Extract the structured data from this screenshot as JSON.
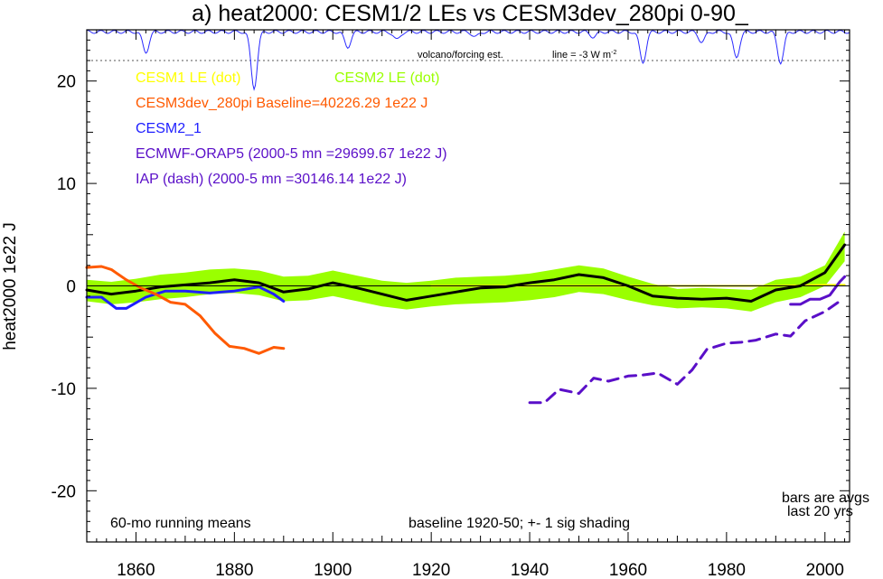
{
  "chart_data": {
    "type": "line",
    "title": "a) heat2000: CESM1/2 LEs vs CESM3dev_280pi 0-90_",
    "xlabel": "",
    "ylabel": "heat2000 1e22 J",
    "xlim": [
      1850,
      2005
    ],
    "ylim": [
      -25,
      25
    ],
    "x_ticks": [
      1860,
      1880,
      1900,
      1920,
      1940,
      1960,
      1980,
      2000
    ],
    "y_ticks": [
      -20,
      -10,
      0,
      10,
      20
    ],
    "grid": false,
    "colors": {
      "cesm1": "#ffff00",
      "cesm2_le": "#9aff00",
      "cesm3dev": "#ff5a00",
      "cesm2_1": "#1f1fff",
      "orap5": "#5a0fc8",
      "iap": "#5a0fc8",
      "volcano": "#2a2aff",
      "ensemble_mean": "#000000"
    },
    "legend": [
      {
        "key": "cesm1",
        "text": "CESM1 LE (dot)"
      },
      {
        "key": "cesm2_le",
        "text": "CESM2 LE (dot)"
      },
      {
        "key": "cesm3dev",
        "text": "CESM3dev_280pi Baseline=40226.29 1e22 J"
      },
      {
        "key": "cesm2_1",
        "text": "CESM2_1"
      },
      {
        "key": "orap5",
        "text": "ECMWF-ORAP5 (2000-5 mn =29699.67 1e22 J)"
      },
      {
        "key": "iap",
        "text": "IAP (dash) (2000-5 mn =30146.14 1e22 J)"
      }
    ],
    "annotations": {
      "volcano_label": "volcano/forcing est.",
      "line_label": "line = -3 W m",
      "line_sup": "-2",
      "running_means": "60-mo running means",
      "baseline": "baseline 1920-50; +- 1 sig shading",
      "bars_line1": "bars are avgs",
      "bars_line2": "last 20 yrs"
    },
    "volcano_line_y": 22,
    "volcano_dips": [
      {
        "year": 1862,
        "depth": 2.0
      },
      {
        "year": 1884,
        "depth": 5.5
      },
      {
        "year": 1903,
        "depth": 1.5
      },
      {
        "year": 1913,
        "depth": 0.8
      },
      {
        "year": 1929,
        "depth": 0.5
      },
      {
        "year": 1953,
        "depth": 0.5
      },
      {
        "year": 1963,
        "depth": 3.0
      },
      {
        "year": 1975,
        "depth": 1.0
      },
      {
        "year": 1982,
        "depth": 2.5
      },
      {
        "year": 1991,
        "depth": 3.0
      }
    ],
    "series": [
      {
        "key": "cesm2_le",
        "style": "band",
        "x": [
          1850,
          1855,
          1860,
          1865,
          1870,
          1875,
          1880,
          1885,
          1890,
          1895,
          1900,
          1905,
          1910,
          1915,
          1920,
          1925,
          1930,
          1935,
          1940,
          1945,
          1950,
          1955,
          1960,
          1965,
          1970,
          1975,
          1980,
          1985,
          1990,
          1995,
          2000,
          2004
        ],
        "upper": [
          0.6,
          0.4,
          0.7,
          1.1,
          1.3,
          1.6,
          1.7,
          1.5,
          0.9,
          1.0,
          1.5,
          1.0,
          0.5,
          0.3,
          0.5,
          0.8,
          0.9,
          1.0,
          1.2,
          1.6,
          2.0,
          1.7,
          0.9,
          0.2,
          -0.3,
          -0.2,
          -0.3,
          -0.4,
          0.6,
          0.9,
          2.0,
          5.3
        ],
        "lower": [
          -1.5,
          -1.8,
          -1.6,
          -1.3,
          -1.1,
          -0.8,
          -0.7,
          -0.9,
          -1.5,
          -1.4,
          -1.0,
          -1.5,
          -2.0,
          -2.3,
          -2.0,
          -1.8,
          -1.7,
          -1.6,
          -1.4,
          -1.1,
          -0.6,
          -0.8,
          -1.4,
          -1.9,
          -2.2,
          -2.1,
          -2.2,
          -2.5,
          -1.6,
          -1.1,
          0.0,
          2.4
        ]
      },
      {
        "key": "cesm1",
        "style": "line",
        "x": [
          1920,
          1930,
          1940,
          1950,
          1960,
          1970,
          1980,
          1990,
          2000,
          2004
        ],
        "y": [
          0.0,
          0.0,
          0.0,
          0.0,
          0.0,
          0.0,
          0.0,
          0.0,
          0.1,
          0.1
        ]
      },
      {
        "key": "ensemble_mean",
        "style": "line",
        "x": [
          1850,
          1855,
          1860,
          1865,
          1870,
          1875,
          1880,
          1885,
          1890,
          1895,
          1900,
          1905,
          1910,
          1915,
          1920,
          1925,
          1930,
          1935,
          1940,
          1945,
          1950,
          1955,
          1960,
          1965,
          1970,
          1975,
          1980,
          1985,
          1990,
          1995,
          2000,
          2004
        ],
        "y": [
          -0.4,
          -0.8,
          -0.5,
          -0.1,
          0.1,
          0.3,
          0.6,
          0.3,
          -0.6,
          -0.3,
          0.3,
          -0.2,
          -0.8,
          -1.4,
          -1.0,
          -0.6,
          -0.2,
          -0.1,
          0.3,
          0.6,
          1.1,
          0.8,
          0.0,
          -1.0,
          -1.2,
          -1.3,
          -1.2,
          -1.5,
          -0.4,
          0.0,
          1.3,
          4.0
        ]
      },
      {
        "key": "cesm2_1",
        "style": "line",
        "x": [
          1850,
          1853,
          1856,
          1858,
          1862,
          1866,
          1870,
          1875,
          1880,
          1885,
          1888,
          1890
        ],
        "y": [
          -1.1,
          -1.1,
          -2.2,
          -2.2,
          -1.1,
          -0.5,
          -0.5,
          -0.7,
          -0.5,
          -0.1,
          -0.8,
          -1.5
        ]
      },
      {
        "key": "cesm3dev",
        "style": "line",
        "x": [
          1850,
          1853,
          1855,
          1858,
          1861,
          1864,
          1867,
          1870,
          1873,
          1876,
          1879,
          1882,
          1885,
          1888,
          1890
        ],
        "y": [
          1.8,
          1.9,
          1.6,
          0.6,
          -0.2,
          -0.8,
          -1.6,
          -1.8,
          -2.9,
          -4.6,
          -5.9,
          -6.1,
          -6.6,
          -6.0,
          -6.1
        ]
      },
      {
        "key": "iap",
        "style": "dash",
        "x": [
          1940,
          1943,
          1946,
          1950,
          1953,
          1956,
          1960,
          1963,
          1966,
          1970,
          1973,
          1976,
          1980,
          1983,
          1986,
          1990,
          1993,
          1996,
          2000,
          2003
        ],
        "y": [
          -11.4,
          -11.4,
          -10.1,
          -10.5,
          -9.0,
          -9.3,
          -8.8,
          -8.7,
          -8.5,
          -9.6,
          -8.2,
          -6.2,
          -5.6,
          -5.5,
          -5.3,
          -4.7,
          -4.9,
          -3.4,
          -2.5,
          -1.5
        ]
      },
      {
        "key": "orap5",
        "style": "line",
        "x": [
          1993,
          1995,
          1997,
          1999,
          2001,
          2003,
          2004
        ],
        "y": [
          -1.8,
          -1.8,
          -1.3,
          -1.3,
          -0.9,
          0.4,
          0.9
        ]
      }
    ]
  }
}
